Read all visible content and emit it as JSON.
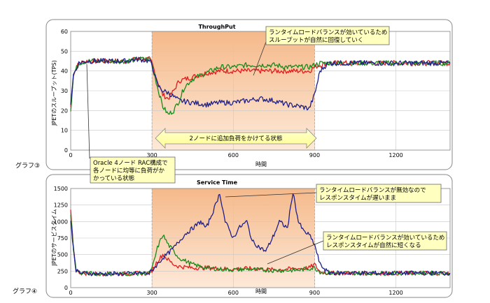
{
  "labels": {
    "graph3": "グラフ③",
    "graph4": "グラフ④"
  },
  "colors": {
    "node1": "#e31a1c",
    "node2": "#1a8a1a",
    "node3": "#1f1f8a",
    "highlight": "#f8c9a0",
    "highlight_light": "#fbe3cc",
    "note_bg": "#ffffc0"
  },
  "chart_data": [
    {
      "id": "throughput",
      "type": "line",
      "title": "ThroughPut",
      "xlabel": "時間",
      "ylabel": "JPETのスループット(TPS)",
      "xlim": [
        0,
        1400
      ],
      "ylim": [
        0,
        60
      ],
      "xticks": [
        "0",
        "300",
        "600",
        "900",
        "1200"
      ],
      "yticks": [
        "0",
        "10",
        "20",
        "30",
        "40",
        "50",
        "60"
      ],
      "grid": true,
      "highlight_range": [
        300,
        900
      ],
      "series": [
        {
          "color": "red",
          "points": [
            [
              0,
              22
            ],
            [
              10,
              38
            ],
            [
              30,
              44
            ],
            [
              60,
              45
            ],
            [
              100,
              45
            ],
            [
              150,
              45
            ],
            [
              200,
              45
            ],
            [
              250,
              46
            ],
            [
              290,
              46
            ],
            [
              300,
              44
            ],
            [
              320,
              35
            ],
            [
              340,
              28
            ],
            [
              360,
              26
            ],
            [
              380,
              30
            ],
            [
              400,
              35
            ],
            [
              450,
              37
            ],
            [
              500,
              39
            ],
            [
              550,
              40
            ],
            [
              600,
              40
            ],
            [
              650,
              40
            ],
            [
              700,
              40
            ],
            [
              750,
              40
            ],
            [
              800,
              40
            ],
            [
              850,
              40
            ],
            [
              880,
              40
            ],
            [
              900,
              42
            ],
            [
              920,
              43
            ],
            [
              950,
              44
            ],
            [
              1000,
              44
            ],
            [
              1100,
              44
            ],
            [
              1200,
              44
            ],
            [
              1300,
              44
            ],
            [
              1400,
              44
            ]
          ]
        },
        {
          "color": "green",
          "points": [
            [
              0,
              20
            ],
            [
              10,
              38
            ],
            [
              30,
              44
            ],
            [
              60,
              45
            ],
            [
              100,
              45
            ],
            [
              150,
              45
            ],
            [
              200,
              45
            ],
            [
              250,
              46
            ],
            [
              290,
              46
            ],
            [
              300,
              44
            ],
            [
              320,
              32
            ],
            [
              340,
              22
            ],
            [
              360,
              18
            ],
            [
              380,
              20
            ],
            [
              400,
              25
            ],
            [
              420,
              32
            ],
            [
              450,
              36
            ],
            [
              500,
              39
            ],
            [
              550,
              42
            ],
            [
              600,
              42
            ],
            [
              650,
              43
            ],
            [
              700,
              43
            ],
            [
              750,
              43
            ],
            [
              800,
              42
            ],
            [
              850,
              42
            ],
            [
              880,
              42
            ],
            [
              900,
              43
            ],
            [
              920,
              44
            ],
            [
              950,
              44
            ],
            [
              1000,
              44
            ],
            [
              1100,
              44
            ],
            [
              1200,
              44
            ],
            [
              1300,
              44
            ],
            [
              1400,
              44
            ]
          ]
        },
        {
          "color": "navy",
          "points": [
            [
              0,
              24
            ],
            [
              10,
              38
            ],
            [
              30,
              44
            ],
            [
              60,
              45
            ],
            [
              100,
              45
            ],
            [
              150,
              45
            ],
            [
              200,
              45
            ],
            [
              250,
              46
            ],
            [
              290,
              45
            ],
            [
              300,
              43
            ],
            [
              320,
              33
            ],
            [
              340,
              30
            ],
            [
              360,
              29
            ],
            [
              380,
              27
            ],
            [
              400,
              25
            ],
            [
              450,
              24
            ],
            [
              500,
              23
            ],
            [
              550,
              24
            ],
            [
              600,
              24
            ],
            [
              650,
              25
            ],
            [
              700,
              26
            ],
            [
              750,
              25
            ],
            [
              800,
              23
            ],
            [
              850,
              22
            ],
            [
              880,
              21
            ],
            [
              900,
              28
            ],
            [
              920,
              40
            ],
            [
              950,
              44
            ],
            [
              1000,
              44
            ],
            [
              1100,
              44
            ],
            [
              1200,
              44
            ],
            [
              1300,
              44
            ],
            [
              1400,
              44
            ]
          ]
        }
      ]
    },
    {
      "id": "service_time",
      "type": "line",
      "title": "Service Time",
      "xlabel": "時間",
      "ylabel": "JPETのサービスタイム",
      "xlim": [
        0,
        1400
      ],
      "ylim": [
        0,
        1500
      ],
      "xticks": [
        "0",
        "300",
        "600",
        "900",
        "1200"
      ],
      "yticks": [
        "0",
        "250",
        "500",
        "750",
        "1000",
        "1250",
        "1500"
      ],
      "grid": true,
      "highlight_range": [
        300,
        900
      ],
      "series": [
        {
          "color": "red",
          "points": [
            [
              0,
              1150
            ],
            [
              10,
              600
            ],
            [
              20,
              260
            ],
            [
              40,
              220
            ],
            [
              100,
              210
            ],
            [
              200,
              210
            ],
            [
              290,
              220
            ],
            [
              300,
              260
            ],
            [
              320,
              400
            ],
            [
              340,
              500
            ],
            [
              360,
              420
            ],
            [
              380,
              350
            ],
            [
              400,
              320
            ],
            [
              450,
              300
            ],
            [
              500,
              300
            ],
            [
              550,
              290
            ],
            [
              600,
              280
            ],
            [
              650,
              290
            ],
            [
              700,
              280
            ],
            [
              750,
              270
            ],
            [
              800,
              280
            ],
            [
              850,
              290
            ],
            [
              880,
              300
            ],
            [
              900,
              350
            ],
            [
              920,
              240
            ],
            [
              950,
              220
            ],
            [
              1000,
              220
            ],
            [
              1100,
              220
            ],
            [
              1200,
              220
            ],
            [
              1300,
              220
            ],
            [
              1400,
              220
            ]
          ]
        },
        {
          "color": "green",
          "points": [
            [
              0,
              1100
            ],
            [
              10,
              600
            ],
            [
              20,
              260
            ],
            [
              40,
              220
            ],
            [
              100,
              210
            ],
            [
              200,
              210
            ],
            [
              290,
              220
            ],
            [
              300,
              280
            ],
            [
              320,
              600
            ],
            [
              340,
              800
            ],
            [
              360,
              650
            ],
            [
              380,
              550
            ],
            [
              400,
              450
            ],
            [
              450,
              350
            ],
            [
              500,
              300
            ],
            [
              550,
              280
            ],
            [
              600,
              270
            ],
            [
              650,
              280
            ],
            [
              700,
              270
            ],
            [
              750,
              260
            ],
            [
              800,
              260
            ],
            [
              850,
              270
            ],
            [
              880,
              290
            ],
            [
              900,
              300
            ],
            [
              920,
              240
            ],
            [
              950,
              220
            ],
            [
              1000,
              220
            ],
            [
              1100,
              220
            ],
            [
              1200,
              220
            ],
            [
              1300,
              220
            ],
            [
              1400,
              220
            ]
          ]
        },
        {
          "color": "navy",
          "points": [
            [
              0,
              1000
            ],
            [
              10,
              600
            ],
            [
              20,
              250
            ],
            [
              40,
              220
            ],
            [
              100,
              210
            ],
            [
              200,
              210
            ],
            [
              290,
              220
            ],
            [
              300,
              260
            ],
            [
              320,
              350
            ],
            [
              340,
              450
            ],
            [
              360,
              520
            ],
            [
              380,
              600
            ],
            [
              400,
              700
            ],
            [
              420,
              800
            ],
            [
              450,
              900
            ],
            [
              480,
              1000
            ],
            [
              500,
              900
            ],
            [
              530,
              1200
            ],
            [
              550,
              1430
            ],
            [
              570,
              1000
            ],
            [
              600,
              750
            ],
            [
              620,
              900
            ],
            [
              650,
              1000
            ],
            [
              670,
              700
            ],
            [
              700,
              600
            ],
            [
              720,
              550
            ],
            [
              750,
              800
            ],
            [
              770,
              1000
            ],
            [
              800,
              900
            ],
            [
              820,
              1450
            ],
            [
              840,
              1000
            ],
            [
              860,
              850
            ],
            [
              880,
              800
            ],
            [
              900,
              650
            ],
            [
              920,
              350
            ],
            [
              950,
              230
            ],
            [
              1000,
              220
            ],
            [
              1100,
              220
            ],
            [
              1200,
              220
            ],
            [
              1300,
              220
            ],
            [
              1400,
              220
            ]
          ]
        }
      ]
    }
  ],
  "annotations": {
    "tp_note": [
      "ランタイムロードバランスが効いているため",
      "スループットが自然に回復していく"
    ],
    "load_arrow": "2ノードに追加負荷をかけてる状態",
    "rac_note": [
      "Oracle 4ノード RAC構成で",
      "各ノードに均等に負荷がか",
      "かっている状態"
    ],
    "st_note1": [
      "ランタイムロードバランスが無効なので",
      "レスポンスタイムが遅いまま"
    ],
    "st_note2": [
      "ランタイムロードバランスが効いているため",
      "レスポンスタイムが自然に短くなる"
    ]
  }
}
